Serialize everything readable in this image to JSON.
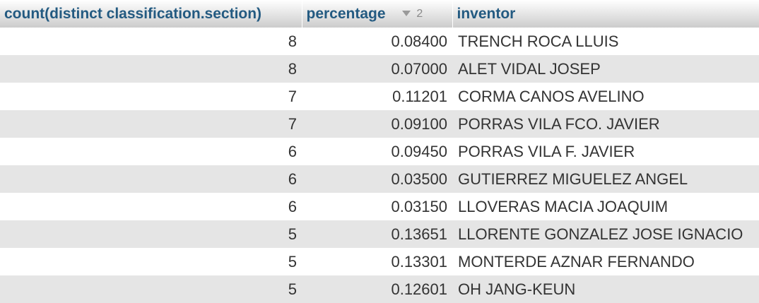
{
  "table": {
    "columns": [
      {
        "label": "count(distinct classification.section)"
      },
      {
        "label": "percentage",
        "sort_order": "2"
      },
      {
        "label": "inventor"
      }
    ],
    "rows": [
      {
        "count": "8",
        "percentage": "0.08400",
        "inventor": "TRENCH ROCA LLUIS"
      },
      {
        "count": "8",
        "percentage": "0.07000",
        "inventor": "ALET VIDAL JOSEP"
      },
      {
        "count": "7",
        "percentage": "0.11201",
        "inventor": "CORMA CANOS AVELINO"
      },
      {
        "count": "7",
        "percentage": "0.09100",
        "inventor": "PORRAS VILA FCO. JAVIER"
      },
      {
        "count": "6",
        "percentage": "0.09450",
        "inventor": "PORRAS VILA F. JAVIER"
      },
      {
        "count": "6",
        "percentage": "0.03500",
        "inventor": "GUTIERREZ MIGUELEZ ANGEL"
      },
      {
        "count": "6",
        "percentage": "0.03150",
        "inventor": "LLOVERAS MACIA JOAQUIM"
      },
      {
        "count": "5",
        "percentage": "0.13651",
        "inventor": "LLORENTE GONZALEZ JOSE IGNACIO"
      },
      {
        "count": "5",
        "percentage": "0.13301",
        "inventor": "MONTERDE AZNAR FERNANDO"
      },
      {
        "count": "5",
        "percentage": "0.12601",
        "inventor": "OH JANG-KEUN"
      }
    ]
  },
  "icons": {
    "sort": "sort-descending-icon"
  }
}
